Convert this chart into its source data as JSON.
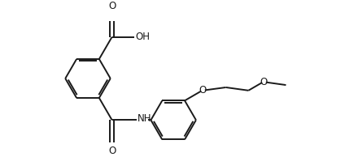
{
  "bg_color": "#ffffff",
  "line_color": "#1a1a1a",
  "line_width": 1.4,
  "font_size": 8.5,
  "figsize": [
    4.24,
    1.94
  ],
  "dpi": 100,
  "xlim": [
    0.0,
    8.5
  ],
  "ylim": [
    0.0,
    3.9
  ]
}
